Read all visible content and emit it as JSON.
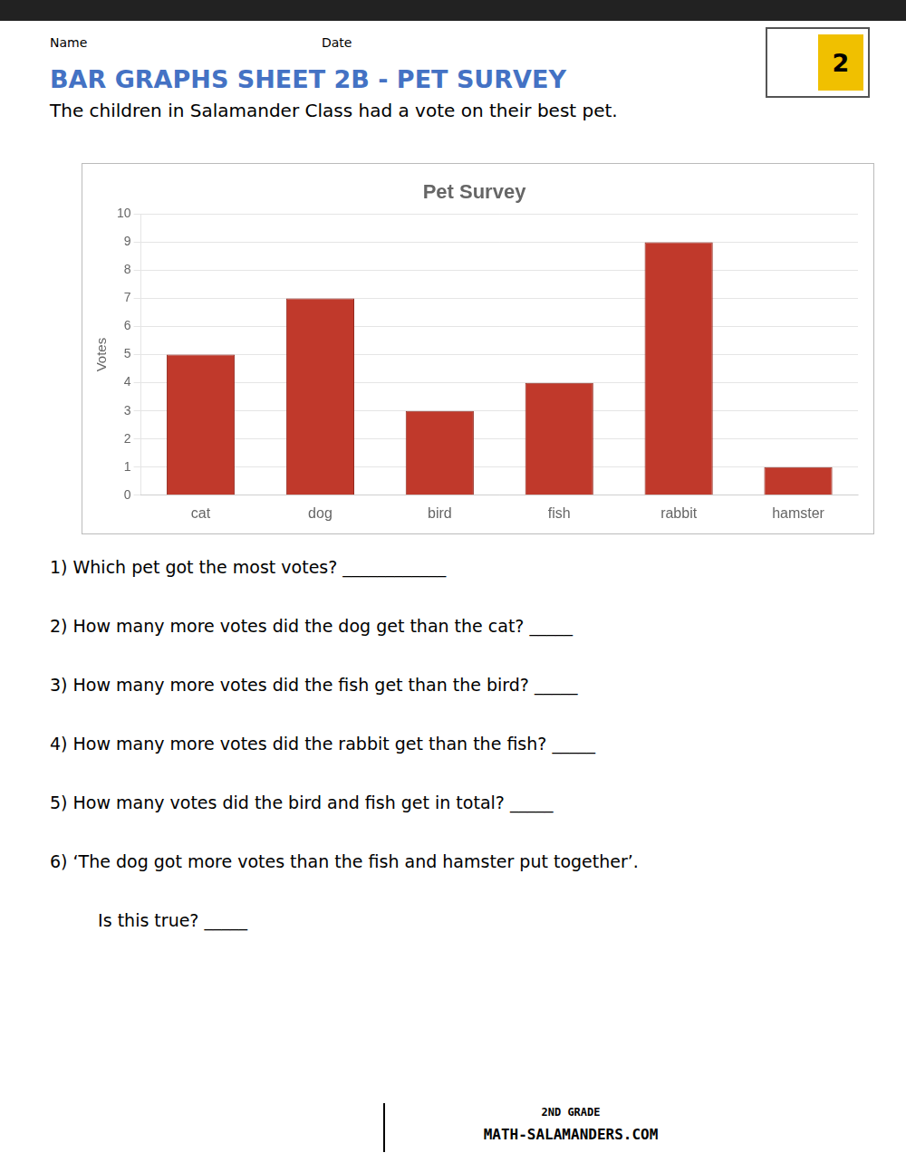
{
  "title": "BAR GRAPHS SHEET 2B - PET SURVEY",
  "subtitle": "The children in Salamander Class had a vote on their best pet.",
  "annotations": [
    "Name",
    "Date",
    "1) Which pet got the most votes? ____________",
    "2) How many more votes did the dog get than the cat? _____",
    "3) How many more votes did the fish get than the bird? _____",
    "4) How many more votes did the rabbit get than the fish? _____",
    "5) How many votes did the bird and fish get in total? _____",
    "6) ‘The dog got more votes than the fish and hamster put together’.",
    "   Is this true? _____",
    "2ND GRADE",
    "MATH-SALAMANDERS.COM",
    "2"
  ],
  "chart_data": {
    "type": "bar",
    "title": "Pet Survey",
    "categories": [
      "cat",
      "dog",
      "bird",
      "fish",
      "rabbit",
      "hamster"
    ],
    "values": [
      5,
      7,
      3,
      4,
      9,
      1
    ],
    "color": "#C0392B",
    "ylabel": "Votes",
    "ylim": [
      0,
      10
    ],
    "yticks": [
      0,
      1,
      2,
      3,
      4,
      5,
      6,
      7,
      8,
      9,
      10
    ],
    "grid": true
  }
}
